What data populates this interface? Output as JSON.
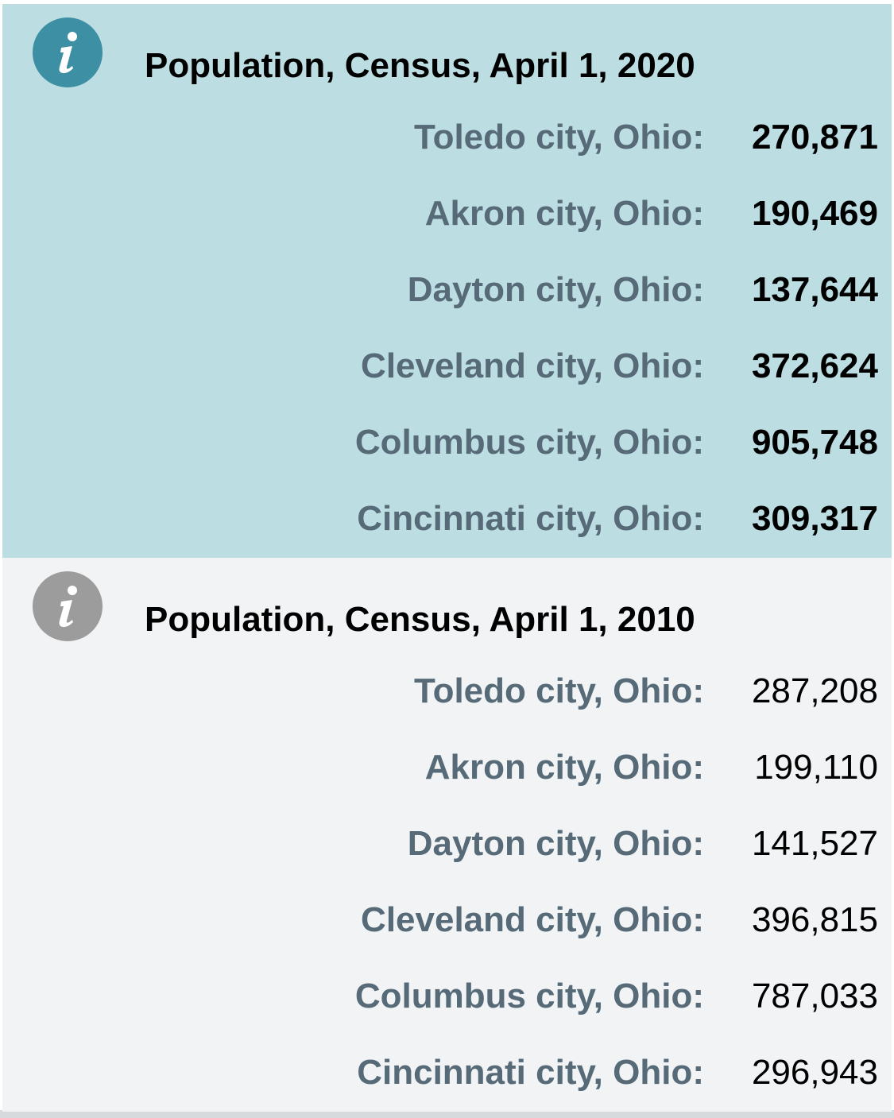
{
  "sections": [
    {
      "title": "Population, Census, April 1, 2020",
      "rows": [
        {
          "label": "Toledo city, Ohio:",
          "value": "270,871"
        },
        {
          "label": "Akron city, Ohio:",
          "value": "190,469"
        },
        {
          "label": "Dayton city, Ohio:",
          "value": "137,644"
        },
        {
          "label": "Cleveland city, Ohio:",
          "value": "372,624"
        },
        {
          "label": "Columbus city, Ohio:",
          "value": "905,748"
        },
        {
          "label": "Cincinnati city, Ohio:",
          "value": "309,317"
        }
      ]
    },
    {
      "title": "Population, Census, April 1, 2010",
      "rows": [
        {
          "label": "Toledo city, Ohio:",
          "value": "287,208"
        },
        {
          "label": "Akron city, Ohio:",
          "value": "199,110"
        },
        {
          "label": "Dayton city, Ohio:",
          "value": "141,527"
        },
        {
          "label": "Cleveland city, Ohio:",
          "value": "396,815"
        },
        {
          "label": "Columbus city, Ohio:",
          "value": "787,033"
        },
        {
          "label": "Cincinnati city, Ohio:",
          "value": "296,943"
        }
      ]
    }
  ]
}
